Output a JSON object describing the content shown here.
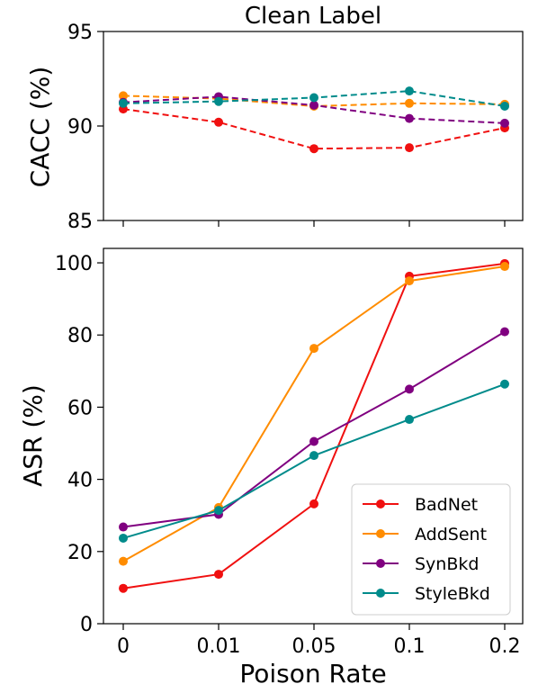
{
  "chart_data": [
    {
      "type": "line",
      "title": "Clean Label",
      "xlabel": "",
      "ylabel": "CACC (%)",
      "categories": [
        "0",
        "0.01",
        "0.05",
        "0.1",
        "0.2"
      ],
      "ylim": [
        85,
        95
      ],
      "yticks": [
        85,
        90,
        95
      ],
      "line_style": "dashed",
      "grid": false,
      "series": [
        {
          "name": "BadNet",
          "color": "#f01010",
          "values": [
            90.9,
            90.2,
            88.8,
            88.85,
            89.9
          ]
        },
        {
          "name": "AddSent",
          "color": "#ff8c00",
          "values": [
            91.6,
            91.45,
            91.05,
            91.2,
            91.15
          ]
        },
        {
          "name": "SynBkd",
          "color": "#800080",
          "values": [
            91.25,
            91.55,
            91.1,
            90.4,
            90.15
          ]
        },
        {
          "name": "StyleBkd",
          "color": "#008b8b",
          "values": [
            91.2,
            91.3,
            91.5,
            91.85,
            91.05
          ]
        }
      ]
    },
    {
      "type": "line",
      "title": "",
      "xlabel": "Poison Rate",
      "ylabel": "ASR (%)",
      "categories": [
        "0",
        "0.01",
        "0.05",
        "0.1",
        "0.2"
      ],
      "ylim": [
        0,
        104
      ],
      "yticks": [
        0,
        20,
        40,
        60,
        80,
        100
      ],
      "line_style": "solid",
      "grid": false,
      "legend_position": "bottom-right",
      "series": [
        {
          "name": "BadNet",
          "color": "#f01010",
          "values": [
            9.8,
            13.7,
            33.2,
            96.3,
            99.8
          ]
        },
        {
          "name": "AddSent",
          "color": "#ff8c00",
          "values": [
            17.3,
            32.2,
            76.3,
            95.0,
            99.0
          ]
        },
        {
          "name": "SynBkd",
          "color": "#800080",
          "values": [
            26.8,
            30.3,
            50.5,
            65.0,
            80.9
          ]
        },
        {
          "name": "StyleBkd",
          "color": "#008b8b",
          "values": [
            23.7,
            31.4,
            46.6,
            56.6,
            66.4
          ]
        }
      ]
    }
  ]
}
